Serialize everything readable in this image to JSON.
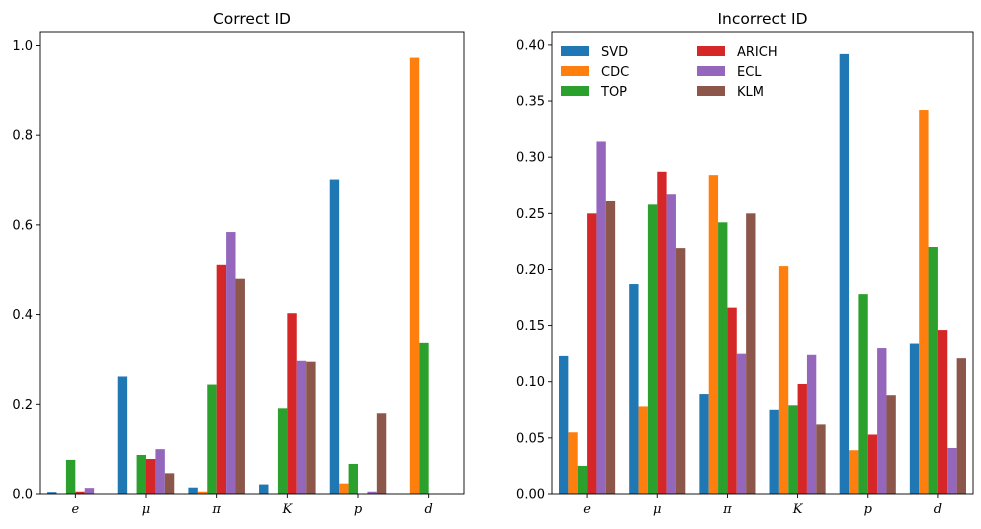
{
  "chart_data": [
    {
      "type": "bar",
      "title": "Correct ID",
      "xlabel": "",
      "ylabel": "",
      "categories": [
        "e",
        "μ",
        "π",
        "K",
        "p",
        "d"
      ],
      "ylim": [
        0,
        1.03
      ],
      "yticks": [
        "0.0",
        "0.2",
        "0.4",
        "0.6",
        "0.8",
        "1.0"
      ],
      "grid": false,
      "legend": null,
      "series": [
        {
          "name": "SVD",
          "color": "#1f77b4",
          "values": [
            0.004,
            0.262,
            0.014,
            0.021,
            0.701,
            0.0
          ]
        },
        {
          "name": "CDC",
          "color": "#ff7f0e",
          "values": [
            0.0,
            0.0,
            0.005,
            0.0,
            0.023,
            0.973
          ]
        },
        {
          "name": "TOP",
          "color": "#2ca02c",
          "values": [
            0.076,
            0.087,
            0.244,
            0.191,
            0.067,
            0.337
          ]
        },
        {
          "name": "ARICH",
          "color": "#d62728",
          "values": [
            0.005,
            0.078,
            0.511,
            0.403,
            0.0,
            0.0
          ]
        },
        {
          "name": "ECL",
          "color": "#9467bd",
          "values": [
            0.013,
            0.1,
            0.584,
            0.297,
            0.005,
            0.0
          ]
        },
        {
          "name": "KLM",
          "color": "#8c564b",
          "values": [
            0.0,
            0.046,
            0.48,
            0.295,
            0.18,
            0.0
          ]
        }
      ]
    },
    {
      "type": "bar",
      "title": "Incorrect ID",
      "xlabel": "",
      "ylabel": "",
      "categories": [
        "e",
        "μ",
        "π",
        "K",
        "p",
        "d"
      ],
      "ylim": [
        0,
        0.4115
      ],
      "yticks": [
        "0.00",
        "0.05",
        "0.10",
        "0.15",
        "0.20",
        "0.25",
        "0.30",
        "0.35",
        "0.40"
      ],
      "grid": false,
      "legend": "top-left",
      "series": [
        {
          "name": "SVD",
          "color": "#1f77b4",
          "values": [
            0.123,
            0.187,
            0.089,
            0.075,
            0.392,
            0.134
          ]
        },
        {
          "name": "CDC",
          "color": "#ff7f0e",
          "values": [
            0.055,
            0.078,
            0.284,
            0.203,
            0.039,
            0.342
          ]
        },
        {
          "name": "TOP",
          "color": "#2ca02c",
          "values": [
            0.025,
            0.258,
            0.242,
            0.079,
            0.178,
            0.22
          ]
        },
        {
          "name": "ARICH",
          "color": "#d62728",
          "values": [
            0.25,
            0.287,
            0.166,
            0.098,
            0.053,
            0.146
          ]
        },
        {
          "name": "ECL",
          "color": "#9467bd",
          "values": [
            0.314,
            0.267,
            0.125,
            0.124,
            0.13,
            0.041
          ]
        },
        {
          "name": "KLM",
          "color": "#8c564b",
          "values": [
            0.261,
            0.219,
            0.25,
            0.062,
            0.088,
            0.121
          ]
        }
      ]
    }
  ]
}
